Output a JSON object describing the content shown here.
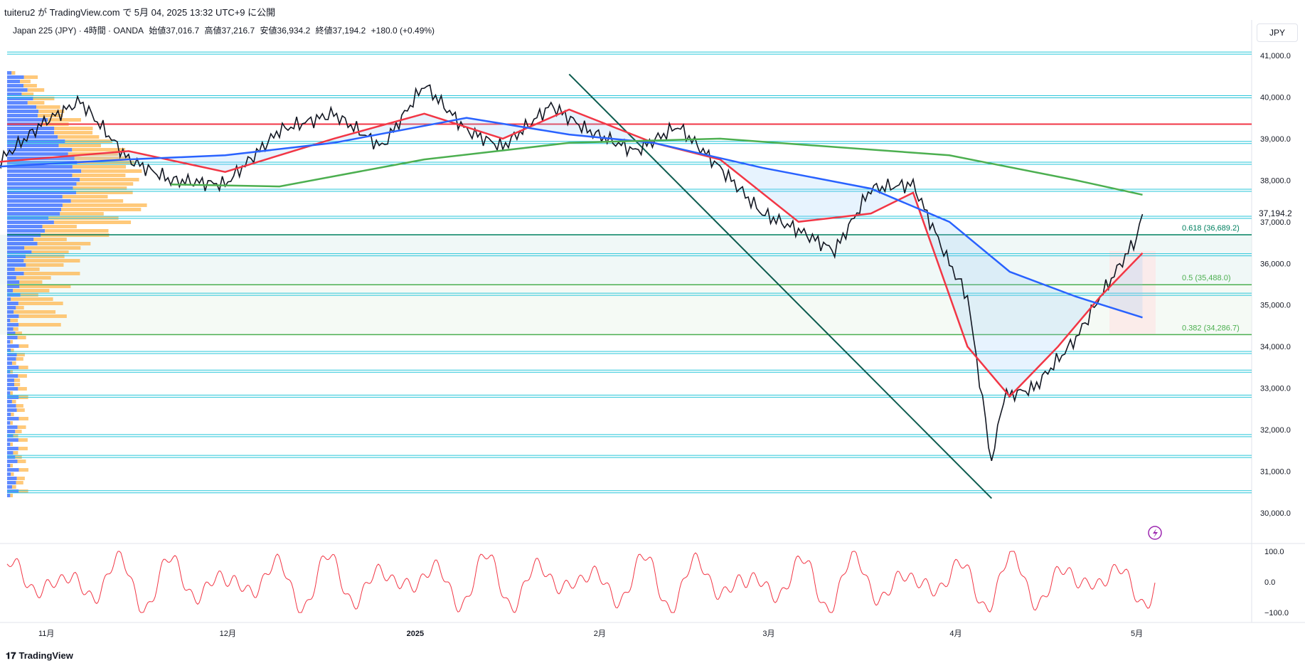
{
  "header": {
    "published": "tuiteru2 が TradingView.com で 5月 04, 2025 13:32 UTC+9 に公開"
  },
  "legend": {
    "symbol": "Japan 225 (JPY) · 4時間 · OANDA",
    "open": "始値37,016.7",
    "high": "高値37,216.7",
    "low": "安値36,934.2",
    "close": "終値37,194.2",
    "change": "+180.0 (+0.49%)"
  },
  "currency": "JPY",
  "footer": {
    "brand": "TradingView"
  },
  "chart_data": [
    {
      "type": "line",
      "panel": "price",
      "x_ticks": [
        "11月",
        "12月",
        "2025",
        "2月",
        "3月",
        "4月",
        "5月"
      ],
      "y_ticks": [
        "41,000.0",
        "40,000.0",
        "39,000.0",
        "38,000.0",
        "37,000.0",
        "36,000.0",
        "35,000.0",
        "34,000.0",
        "33,000.0",
        "32,000.0",
        "31,000.0",
        "30,000.0"
      ],
      "ylim": [
        29700,
        41300
      ],
      "last_price_label": "37,194.2",
      "fib_levels": [
        {
          "label": "0.618 (36,689.2)",
          "value": 36689.2,
          "color": "#008060"
        },
        {
          "label": "0.5 (35,488.0)",
          "value": 35488.0,
          "color": "#4caf50"
        },
        {
          "label": "0.382 (34,286.7)",
          "value": 34286.7,
          "color": "#4caf50"
        }
      ],
      "horizontal_levels": [
        41050,
        40000,
        38900,
        38400,
        37750,
        37100,
        36200,
        35250,
        33850,
        33400,
        32800,
        31850,
        31350,
        30500
      ],
      "red_level": 39350,
      "trendline": {
        "from": {
          "x": "2025-01-27",
          "y": 40550
        },
        "to": {
          "x": "2025-04-07",
          "y": 30350
        }
      },
      "series": [
        {
          "color": "#131722",
          "x": [
            "10/21",
            "11/01",
            "11/07",
            "11/15",
            "11/22",
            "12/01",
            "12/10",
            "12/19",
            "12/27",
            "01/03",
            "01/10",
            "01/16",
            "01/24",
            "01/30",
            "02/07",
            "02/14",
            "02/21",
            "02/28",
            "03/06",
            "03/12",
            "03/18",
            "03/25",
            "03/31",
            "04/03",
            "04/07",
            "04/09",
            "04/14",
            "04/21",
            "04/25",
            "05/01",
            "05/02"
          ],
          "values": [
            38000,
            39400,
            39900,
            38500,
            38000,
            37900,
            39200,
            39600,
            38800,
            40300,
            39200,
            38800,
            39800,
            39200,
            38700,
            39300,
            38300,
            37200,
            36800,
            36300,
            37800,
            37900,
            36000,
            35200,
            31200,
            32800,
            33000,
            34200,
            35200,
            36600,
            37194
          ]
        },
        {
          "color": "#f23645",
          "x": [
            "10/21",
            "11/15",
            "12/01",
            "12/19",
            "01/03",
            "01/16",
            "01/27",
            "02/10",
            "02/21",
            "03/06",
            "03/18",
            "03/25",
            "04/03",
            "04/10",
            "04/18",
            "04/25",
            "05/02"
          ],
          "values": [
            38400,
            38700,
            38200,
            39000,
            39600,
            39000,
            39700,
            38900,
            38500,
            37000,
            37200,
            37700,
            34000,
            32800,
            34000,
            35200,
            36250
          ]
        },
        {
          "color": "#2962ff",
          "x": [
            "10/21",
            "11/15",
            "12/01",
            "12/19",
            "01/10",
            "01/27",
            "02/10",
            "02/28",
            "03/18",
            "03/31",
            "04/10",
            "04/21",
            "05/02"
          ],
          "values": [
            38300,
            38500,
            38600,
            38900,
            39500,
            39100,
            38900,
            38300,
            37800,
            37000,
            35800,
            35200,
            34700
          ]
        },
        {
          "color": "#4caf50",
          "x": [
            "11/22",
            "12/10",
            "01/03",
            "01/27",
            "02/21",
            "03/12",
            "03/31",
            "04/21",
            "05/02"
          ],
          "values": [
            37900,
            37850,
            38500,
            38900,
            39000,
            38800,
            38600,
            38000,
            37650
          ]
        }
      ]
    },
    {
      "type": "line",
      "panel": "oscillator",
      "y_ticks": [
        "100.0",
        "0.0",
        "−100.0"
      ],
      "ylim": [
        -110,
        110
      ],
      "series": [
        {
          "color": "#f23645",
          "pattern": "oscillating between -100 and 100"
        }
      ]
    }
  ]
}
